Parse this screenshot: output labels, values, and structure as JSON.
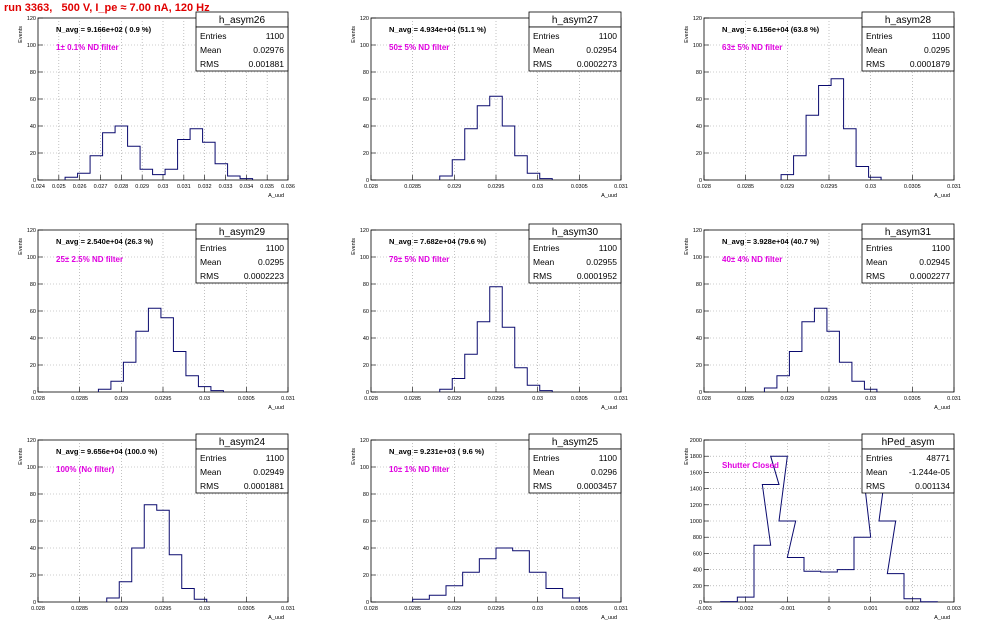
{
  "title": "run 3363,   500 V, I_pe ≈ 7.00 nA, 120 Hz",
  "y_axis_label": "Events",
  "x_axis_label": "A_uud",
  "stats_labels": [
    "Entries",
    "Mean",
    "RMS"
  ],
  "colors": {
    "title": "#e00000",
    "histogram": "#0a0a6e",
    "annotation": "#e000e0",
    "grid": "#999999"
  },
  "chart_data": [
    {
      "type": "histogram",
      "name": "h_asym26",
      "navg": "N_avg = 9.166e+02 ( 0.9 %)",
      "annotation": "1± 0.1% ND filter",
      "stats": {
        "entries": "1100",
        "mean": "0.02976",
        "rms": "0.001881"
      },
      "xlim": [
        0.024,
        0.036
      ],
      "ylim": [
        0,
        120
      ],
      "xticks": [
        "0.024",
        "0.025",
        "0.026",
        "0.027",
        "0.028",
        "0.029",
        "0.03",
        "0.031",
        "0.032",
        "0.033",
        "0.034",
        "0.035",
        "0.036"
      ],
      "yticks": [
        0,
        20,
        40,
        60,
        80,
        100,
        120
      ],
      "x": [
        0.0256,
        0.0262,
        0.0268,
        0.0274,
        0.028,
        0.0286,
        0.0292,
        0.0298,
        0.0304,
        0.031,
        0.0316,
        0.0322,
        0.0328,
        0.0334,
        0.034
      ],
      "y": [
        2,
        5,
        18,
        35,
        40,
        25,
        8,
        4,
        8,
        30,
        38,
        28,
        12,
        3,
        1
      ]
    },
    {
      "type": "histogram",
      "name": "h_asym27",
      "navg": "N_avg = 4.934e+04 (51.1 %)",
      "annotation": "50± 5% ND filter",
      "stats": {
        "entries": "1100",
        "mean": "0.02954",
        "rms": "0.0002273"
      },
      "xlim": [
        0.028,
        0.031
      ],
      "ylim": [
        0,
        120
      ],
      "xticks": [
        "0.028",
        "0.0285",
        "0.029",
        "0.0295",
        "0.03",
        "0.0305",
        "0.031"
      ],
      "yticks": [
        0,
        20,
        40,
        60,
        80,
        100,
        120
      ],
      "x": [
        0.0289,
        0.02905,
        0.0292,
        0.02935,
        0.0295,
        0.02965,
        0.0298,
        0.02995,
        0.0301
      ],
      "y": [
        3,
        15,
        38,
        55,
        62,
        40,
        18,
        5,
        1
      ]
    },
    {
      "type": "histogram",
      "name": "h_asym28",
      "navg": "N_avg = 6.156e+04 (63.8 %)",
      "annotation": "63± 5% ND filter",
      "stats": {
        "entries": "1100",
        "mean": "0.0295",
        "rms": "0.0001879"
      },
      "xlim": [
        0.028,
        0.031
      ],
      "ylim": [
        0,
        120
      ],
      "xticks": [
        "0.028",
        "0.0285",
        "0.029",
        "0.0295",
        "0.03",
        "0.0305",
        "0.031"
      ],
      "yticks": [
        0,
        20,
        40,
        60,
        80,
        100,
        120
      ],
      "x": [
        0.029,
        0.02915,
        0.0293,
        0.02945,
        0.0296,
        0.02975,
        0.0299,
        0.03005
      ],
      "y": [
        4,
        18,
        48,
        70,
        75,
        38,
        10,
        2
      ]
    },
    {
      "type": "histogram",
      "name": "h_asym29",
      "navg": "N_avg = 2.540e+04 (26.3 %)",
      "annotation": "25± 2.5% ND filter",
      "stats": {
        "entries": "1100",
        "mean": "0.0295",
        "rms": "0.0002223"
      },
      "xlim": [
        0.028,
        0.031
      ],
      "ylim": [
        0,
        120
      ],
      "xticks": [
        "0.028",
        "0.0285",
        "0.029",
        "0.0295",
        "0.03",
        "0.0305",
        "0.031"
      ],
      "yticks": [
        0,
        20,
        40,
        60,
        80,
        100,
        120
      ],
      "x": [
        0.0288,
        0.02895,
        0.0291,
        0.02925,
        0.0294,
        0.02955,
        0.0297,
        0.02985,
        0.03,
        0.03015
      ],
      "y": [
        2,
        8,
        22,
        45,
        62,
        55,
        30,
        12,
        4,
        1
      ]
    },
    {
      "type": "histogram",
      "name": "h_asym30",
      "navg": "N_avg = 7.682e+04 (79.6 %)",
      "annotation": "79± 5% ND filter",
      "stats": {
        "entries": "1100",
        "mean": "0.02955",
        "rms": "0.0001952"
      },
      "xlim": [
        0.028,
        0.031
      ],
      "ylim": [
        0,
        120
      ],
      "xticks": [
        "0.028",
        "0.0285",
        "0.029",
        "0.0295",
        "0.03",
        "0.0305",
        "0.031"
      ],
      "yticks": [
        0,
        20,
        40,
        60,
        80,
        100,
        120
      ],
      "x": [
        0.0289,
        0.02905,
        0.0292,
        0.02935,
        0.0295,
        0.02965,
        0.0298,
        0.02995,
        0.0301
      ],
      "y": [
        2,
        10,
        28,
        52,
        78,
        48,
        18,
        5,
        1
      ]
    },
    {
      "type": "histogram",
      "name": "h_asym31",
      "navg": "N_avg = 3.928e+04 (40.7 %)",
      "annotation": "40± 4% ND filter",
      "stats": {
        "entries": "1100",
        "mean": "0.02945",
        "rms": "0.0002277"
      },
      "xlim": [
        0.028,
        0.031
      ],
      "ylim": [
        0,
        120
      ],
      "xticks": [
        "0.028",
        "0.0285",
        "0.029",
        "0.0295",
        "0.03",
        "0.0305",
        "0.031"
      ],
      "yticks": [
        0,
        20,
        40,
        60,
        80,
        100,
        120
      ],
      "x": [
        0.0288,
        0.02895,
        0.0291,
        0.02925,
        0.0294,
        0.02955,
        0.0297,
        0.02985,
        0.03
      ],
      "y": [
        3,
        12,
        30,
        52,
        62,
        45,
        22,
        8,
        2
      ]
    },
    {
      "type": "histogram",
      "name": "h_asym24",
      "navg": "N_avg = 9.656e+04 (100.0 %)",
      "annotation": "100% (No filter)",
      "stats": {
        "entries": "1100",
        "mean": "0.02949",
        "rms": "0.0001881"
      },
      "xlim": [
        0.028,
        0.031
      ],
      "ylim": [
        0,
        120
      ],
      "xticks": [
        "0.028",
        "0.0285",
        "0.029",
        "0.0295",
        "0.03",
        "0.0305",
        "0.031"
      ],
      "yticks": [
        0,
        20,
        40,
        60,
        80,
        100,
        120
      ],
      "x": [
        0.0289,
        0.02905,
        0.0292,
        0.02935,
        0.0295,
        0.02965,
        0.0298,
        0.02995
      ],
      "y": [
        3,
        15,
        40,
        72,
        68,
        35,
        10,
        2
      ]
    },
    {
      "type": "histogram",
      "name": "h_asym25",
      "navg": "N_avg = 9.231e+03 ( 9.6 %)",
      "annotation": "10± 1% ND filter",
      "stats": {
        "entries": "1100",
        "mean": "0.0296",
        "rms": "0.0003457"
      },
      "xlim": [
        0.028,
        0.031
      ],
      "ylim": [
        0,
        120
      ],
      "xticks": [
        "0.028",
        "0.0285",
        "0.029",
        "0.0295",
        "0.03",
        "0.0305",
        "0.031"
      ],
      "yticks": [
        0,
        20,
        40,
        60,
        80,
        100,
        120
      ],
      "x": [
        0.0286,
        0.0288,
        0.029,
        0.0292,
        0.0294,
        0.0296,
        0.0298,
        0.03,
        0.0302,
        0.0304
      ],
      "y": [
        2,
        5,
        12,
        22,
        32,
        40,
        38,
        22,
        10,
        3
      ]
    },
    {
      "type": "histogram",
      "name": "hPed_asym",
      "navg": "",
      "annotation": "Shutter Closed",
      "stats": {
        "entries": "48771",
        "mean": "-1.244e-05",
        "rms": "0.001134"
      },
      "xlim": [
        -0.003,
        0.003
      ],
      "ylim": [
        0,
        2000
      ],
      "xticks": [
        "-0.003",
        "-0.002",
        "-0.001",
        "0",
        "0.001",
        "0.002",
        "0.003"
      ],
      "yticks": [
        0,
        200,
        400,
        600,
        800,
        1000,
        1200,
        1400,
        1600,
        1800,
        2000
      ],
      "x": [
        -0.0024,
        -0.002,
        -0.0016,
        -0.0014,
        -0.0012,
        -0.001,
        -0.0008,
        -0.0004,
        0.0,
        0.0004,
        0.0008,
        0.001,
        0.0012,
        0.0014,
        0.0016,
        0.002,
        0.0024
      ],
      "y": [
        5,
        60,
        700,
        1450,
        1800,
        1000,
        550,
        380,
        370,
        400,
        800,
        1700,
        1780,
        1000,
        350,
        40,
        3
      ]
    }
  ]
}
